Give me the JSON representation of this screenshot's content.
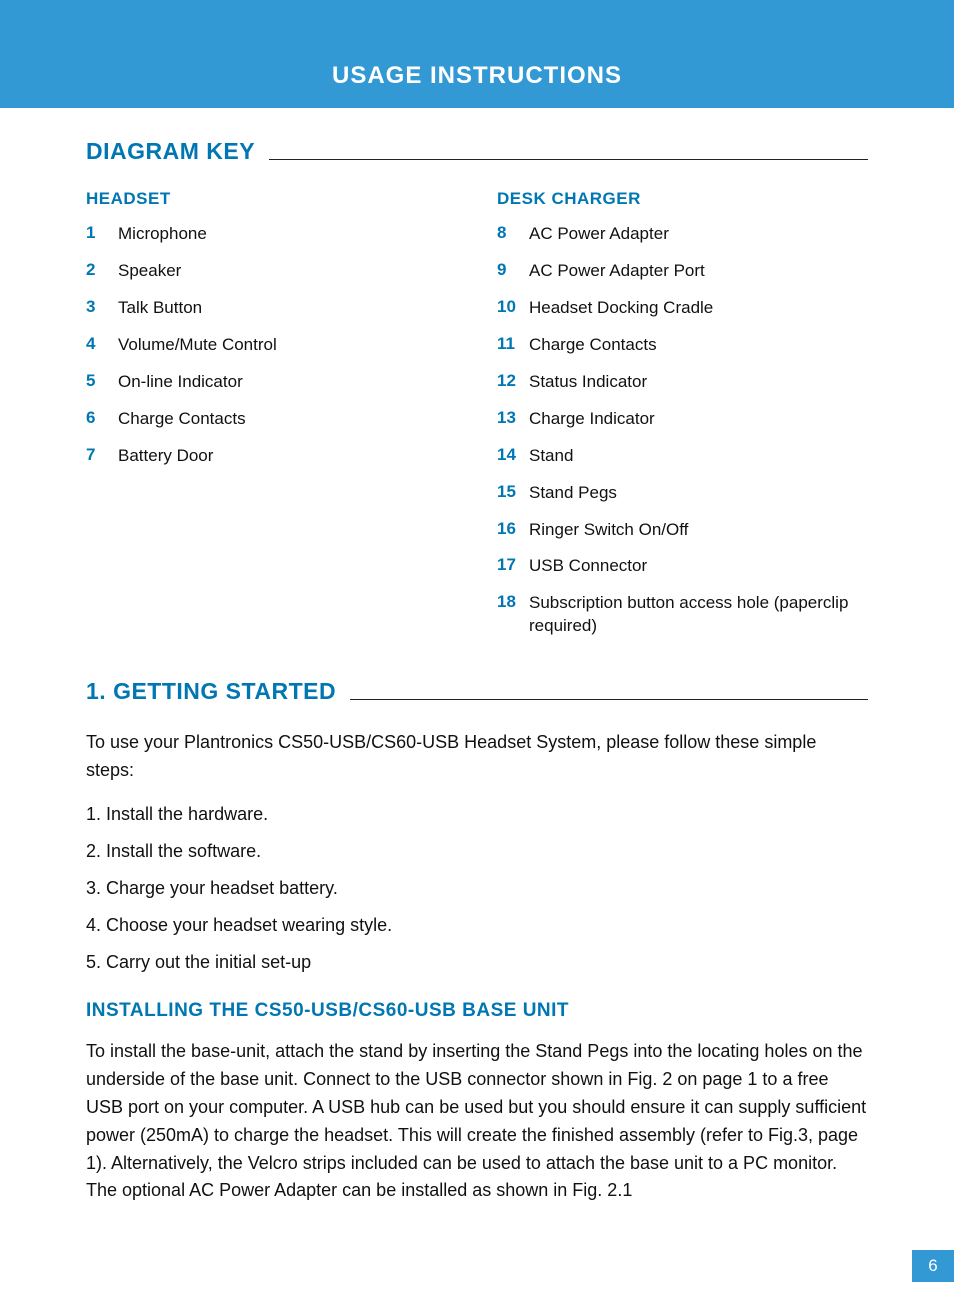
{
  "colors": {
    "brand_blue": "#3399d4",
    "heading_blue": "#0077b3",
    "text": "#111111",
    "rule": "#222222",
    "white": "#ffffff"
  },
  "typography": {
    "header_title_size": 24,
    "section_heading_size": 23,
    "col_heading_size": 17,
    "body_size": 18,
    "key_item_size": 17
  },
  "header": {
    "title": "USAGE INSTRUCTIONS"
  },
  "diagram_key": {
    "heading": "DIAGRAM KEY",
    "headset": {
      "title": "HEADSET",
      "items": [
        {
          "num": "1",
          "label": "Microphone"
        },
        {
          "num": "2",
          "label": "Speaker"
        },
        {
          "num": "3",
          "label": "Talk Button"
        },
        {
          "num": "4",
          "label": "Volume/Mute Control"
        },
        {
          "num": "5",
          "label": "On-line Indicator"
        },
        {
          "num": "6",
          "label": "Charge Contacts"
        },
        {
          "num": "7",
          "label": "Battery Door"
        }
      ]
    },
    "desk_charger": {
      "title": "DESK CHARGER",
      "items": [
        {
          "num": "8",
          "label": "AC Power Adapter"
        },
        {
          "num": "9",
          "label": "AC Power Adapter Port"
        },
        {
          "num": "10",
          "label": "Headset Docking Cradle"
        },
        {
          "num": "11",
          "label": "Charge Contacts"
        },
        {
          "num": "12",
          "label": "Status Indicator"
        },
        {
          "num": "13",
          "label": "Charge Indicator"
        },
        {
          "num": "14",
          "label": "Stand"
        },
        {
          "num": "15",
          "label": "Stand Pegs"
        },
        {
          "num": "16",
          "label": "Ringer Switch On/Off"
        },
        {
          "num": "17",
          "label": "USB Connector"
        },
        {
          "num": "18",
          "label": "Subscription button access hole (paperclip required)"
        }
      ]
    }
  },
  "getting_started": {
    "heading": "1. GETTING STARTED",
    "intro": "To use your Plantronics CS50-USB/CS60-USB Headset System, please follow these simple steps:",
    "steps": [
      "1. Install the hardware.",
      "2. Install the software.",
      "3. Charge your headset battery.",
      "4. Choose your headset wearing style.",
      "5. Carry out the initial set-up"
    ],
    "installing": {
      "heading": "INSTALLING THE CS50-USB/CS60-USB BASE UNIT",
      "body": "To install the base-unit, attach the stand by inserting the Stand Pegs into the locating holes on the underside of the base unit. Connect to the USB connector shown in Fig. 2 on page 1 to a free USB port on your computer. A USB hub can be used but you should ensure it can supply sufficient power (250mA) to charge the headset.  This will create the finished assembly (refer to Fig.3, page 1). Alternatively, the Velcro strips included can be used to attach the base unit to a PC monitor. The optional AC Power Adapter can be installed as shown in Fig. 2.1"
    }
  },
  "page_number": "6"
}
